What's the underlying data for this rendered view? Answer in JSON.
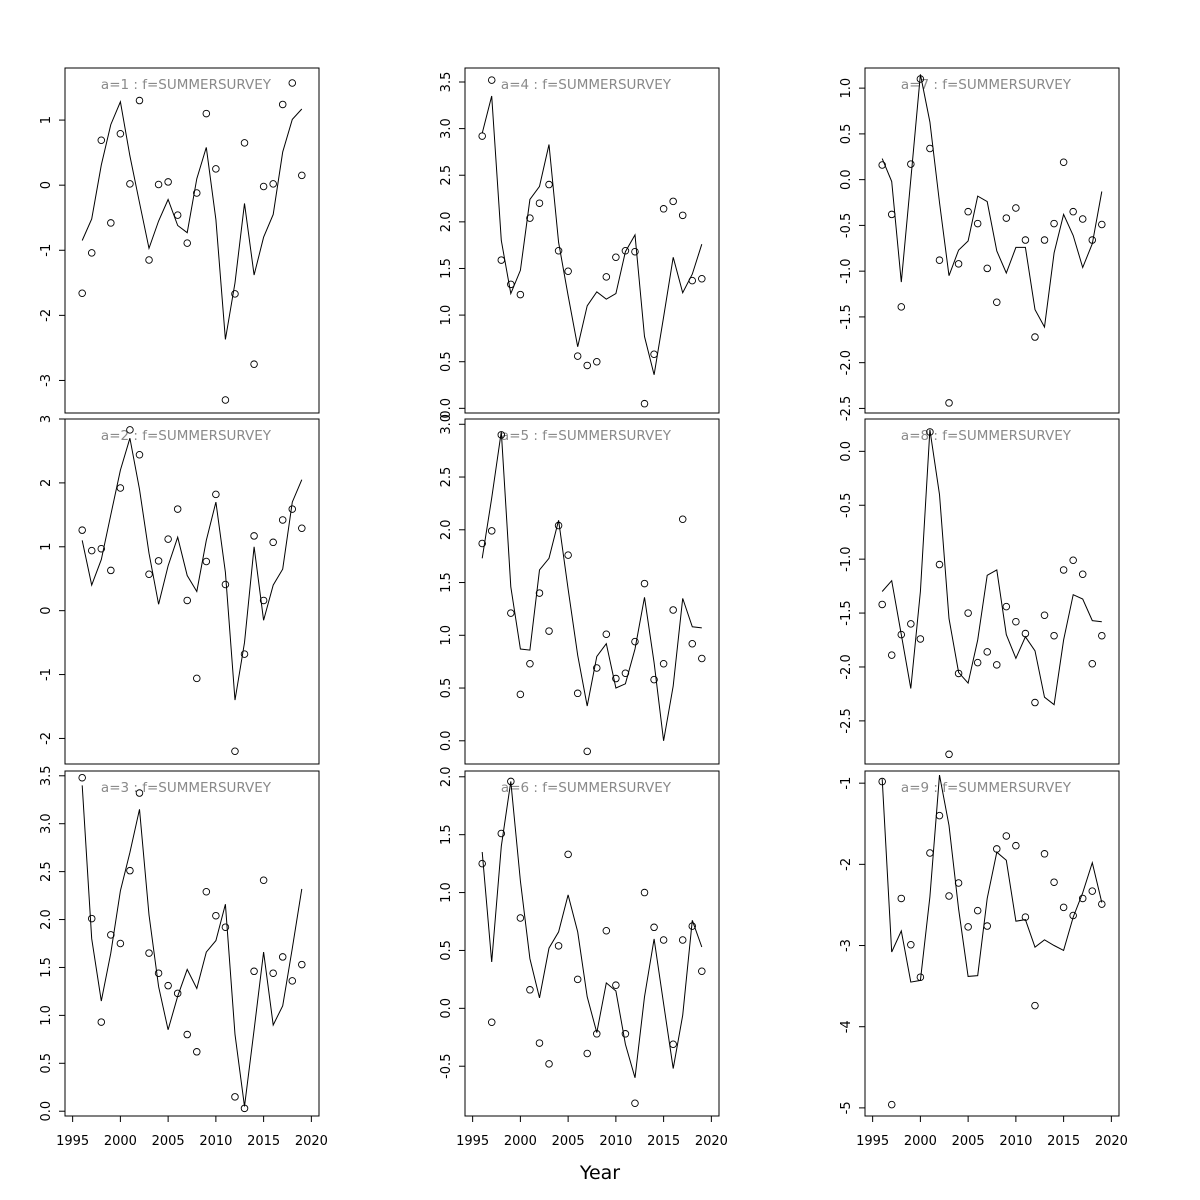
{
  "figure": {
    "xlabel": "Year"
  },
  "chart_data": [
    {
      "type": "line",
      "title": "a=1 : f=SUMMERSURVEY",
      "x": [
        1996,
        1997,
        1998,
        1999,
        2000,
        2001,
        2002,
        2003,
        2004,
        2005,
        2006,
        2007,
        2008,
        2009,
        2010,
        2011,
        2012,
        2013,
        2014,
        2015,
        2016,
        2017,
        2018,
        2019
      ],
      "points": [
        -1.66,
        -1.04,
        0.69,
        -0.58,
        0.79,
        0.02,
        1.3,
        -1.15,
        0.01,
        0.05,
        -0.46,
        -0.89,
        -0.12,
        1.1,
        0.25,
        -3.3,
        -1.67,
        0.65,
        -2.75,
        -0.02,
        0.02,
        1.24,
        1.57,
        0.15
      ],
      "line": [
        -0.85,
        -0.52,
        0.31,
        0.93,
        1.28,
        0.45,
        -0.27,
        -0.97,
        -0.55,
        -0.22,
        -0.62,
        -0.73,
        0.1,
        0.58,
        -0.53,
        -2.37,
        -1.5,
        -0.28,
        -1.38,
        -0.8,
        -0.45,
        0.51,
        1.01,
        1.17
      ],
      "ylim": [
        -3.5,
        1.8
      ],
      "yticks": [
        -3,
        -2,
        -1,
        0,
        1
      ]
    },
    {
      "type": "line",
      "title": "a=2 : f=SUMMERSURVEY",
      "x": [
        1996,
        1997,
        1998,
        1999,
        2000,
        2001,
        2002,
        2003,
        2004,
        2005,
        2006,
        2007,
        2008,
        2009,
        2010,
        2011,
        2012,
        2013,
        2014,
        2015,
        2016,
        2017,
        2018,
        2019
      ],
      "points": [
        1.26,
        0.94,
        0.97,
        0.63,
        1.92,
        2.83,
        2.44,
        0.57,
        0.78,
        1.12,
        1.59,
        0.16,
        -1.06,
        0.77,
        1.82,
        0.41,
        -2.2,
        -0.68,
        1.17,
        0.16,
        1.07,
        1.42,
        1.59,
        1.29
      ],
      "line": [
        1.1,
        0.4,
        0.8,
        1.5,
        2.2,
        2.7,
        1.9,
        0.9,
        0.1,
        0.7,
        1.15,
        0.55,
        0.3,
        1.1,
        1.7,
        0.6,
        -1.4,
        -0.5,
        1.0,
        -0.15,
        0.4,
        0.65,
        1.7,
        2.05
      ],
      "ylim": [
        -2.4,
        3.0
      ],
      "yticks": [
        -2,
        -1,
        0,
        1,
        2,
        3
      ]
    },
    {
      "type": "line",
      "title": "a=3 : f=SUMMERSURVEY",
      "x": [
        1996,
        1997,
        1998,
        1999,
        2000,
        2001,
        2002,
        2003,
        2004,
        2005,
        2006,
        2007,
        2008,
        2009,
        2010,
        2011,
        2012,
        2013,
        2014,
        2015,
        2016,
        2017,
        2018,
        2019
      ],
      "points": [
        3.48,
        2.01,
        0.93,
        1.84,
        1.75,
        2.51,
        3.32,
        1.65,
        1.44,
        1.31,
        1.23,
        0.8,
        0.62,
        2.29,
        2.04,
        1.92,
        0.15,
        0.03,
        1.46,
        2.41,
        1.44,
        1.61,
        1.36,
        1.53
      ],
      "line": [
        3.4,
        1.8,
        1.15,
        1.65,
        2.3,
        2.7,
        3.15,
        2.05,
        1.3,
        0.85,
        1.2,
        1.48,
        1.28,
        1.66,
        1.78,
        2.16,
        0.8,
        0.05,
        0.85,
        1.66,
        0.9,
        1.1,
        1.7,
        2.32
      ],
      "ylim": [
        -0.05,
        3.55
      ],
      "yticks": [
        0.0,
        0.5,
        1.0,
        1.5,
        2.0,
        2.5,
        3.0,
        3.5
      ]
    },
    {
      "type": "line",
      "title": "a=4 : f=SUMMERSURVEY",
      "x": [
        1996,
        1997,
        1998,
        1999,
        2000,
        2001,
        2002,
        2003,
        2004,
        2005,
        2006,
        2007,
        2008,
        2009,
        2010,
        2011,
        2012,
        2013,
        2014,
        2015,
        2016,
        2017,
        2018,
        2019
      ],
      "points": [
        2.92,
        3.52,
        1.59,
        1.33,
        1.22,
        2.04,
        2.2,
        2.4,
        1.69,
        1.47,
        0.56,
        0.46,
        0.5,
        1.41,
        1.62,
        1.69,
        1.68,
        0.05,
        0.58,
        2.14,
        2.22,
        2.07,
        1.37,
        1.39
      ],
      "line": [
        2.95,
        3.35,
        1.8,
        1.23,
        1.48,
        2.24,
        2.38,
        2.83,
        1.78,
        1.21,
        0.66,
        1.1,
        1.25,
        1.17,
        1.23,
        1.68,
        1.86,
        0.77,
        0.36,
        0.98,
        1.62,
        1.24,
        1.44,
        1.76
      ],
      "ylim": [
        -0.05,
        3.65
      ],
      "yticks": [
        0.0,
        0.5,
        1.0,
        1.5,
        2.0,
        2.5,
        3.0,
        3.5
      ]
    },
    {
      "type": "line",
      "title": "a=5 : f=SUMMERSURVEY",
      "x": [
        1996,
        1997,
        1998,
        1999,
        2000,
        2001,
        2002,
        2003,
        2004,
        2005,
        2006,
        2007,
        2008,
        2009,
        2010,
        2011,
        2012,
        2013,
        2014,
        2015,
        2016,
        2017,
        2018,
        2019
      ],
      "points": [
        1.87,
        1.99,
        2.9,
        1.21,
        0.44,
        0.73,
        1.4,
        1.04,
        2.04,
        1.76,
        0.45,
        -0.1,
        0.69,
        1.01,
        0.59,
        0.64,
        0.94,
        1.49,
        0.58,
        0.73,
        1.24,
        2.1,
        0.92,
        0.78
      ],
      "line": [
        1.73,
        2.3,
        2.93,
        1.46,
        0.87,
        0.86,
        1.62,
        1.73,
        2.09,
        1.44,
        0.81,
        0.33,
        0.8,
        0.92,
        0.5,
        0.54,
        0.87,
        1.36,
        0.74,
        0.0,
        0.52,
        1.35,
        1.08,
        1.07
      ],
      "ylim": [
        -0.22,
        3.05
      ],
      "yticks": [
        0.0,
        0.5,
        1.0,
        1.5,
        2.0,
        2.5,
        3.0
      ]
    },
    {
      "type": "line",
      "title": "a=6 : f=SUMMERSURVEY",
      "x": [
        1996,
        1997,
        1998,
        1999,
        2000,
        2001,
        2002,
        2003,
        2004,
        2005,
        2006,
        2007,
        2008,
        2009,
        2010,
        2011,
        2012,
        2013,
        2014,
        2015,
        2016,
        2017,
        2018,
        2019
      ],
      "points": [
        1.25,
        -0.12,
        1.51,
        1.96,
        0.78,
        0.16,
        -0.3,
        -0.48,
        0.54,
        1.33,
        0.25,
        -0.39,
        -0.22,
        0.67,
        0.2,
        -0.22,
        -0.82,
        1.0,
        0.7,
        0.59,
        -0.31,
        0.59,
        0.71,
        0.32
      ],
      "line": [
        1.35,
        0.4,
        1.4,
        1.96,
        1.1,
        0.43,
        0.09,
        0.52,
        0.66,
        0.98,
        0.66,
        0.1,
        -0.21,
        0.22,
        0.15,
        -0.31,
        -0.6,
        0.1,
        0.6,
        0.04,
        -0.52,
        -0.06,
        0.76,
        0.53
      ],
      "ylim": [
        -0.93,
        2.05
      ],
      "yticks": [
        -0.5,
        0.0,
        0.5,
        1.0,
        1.5,
        2.0
      ]
    },
    {
      "type": "line",
      "title": "a=7 : f=SUMMERSURVEY",
      "x": [
        1996,
        1997,
        1998,
        1999,
        2000,
        2001,
        2002,
        2003,
        2004,
        2005,
        2006,
        2007,
        2008,
        2009,
        2010,
        2011,
        2012,
        2013,
        2014,
        2015,
        2016,
        2017,
        2018,
        2019
      ],
      "points": [
        0.16,
        -0.38,
        -1.39,
        0.17,
        1.1,
        0.34,
        -0.88,
        -2.44,
        -0.92,
        -0.35,
        -0.48,
        -0.97,
        -1.34,
        -0.42,
        -0.31,
        -0.66,
        -1.72,
        -0.66,
        -0.48,
        0.19,
        -0.35,
        -0.43,
        -0.66,
        -0.49
      ],
      "line": [
        0.23,
        -0.02,
        -1.12,
        0.0,
        1.15,
        0.63,
        -0.25,
        -1.05,
        -0.77,
        -0.67,
        -0.18,
        -0.24,
        -0.78,
        -1.02,
        -0.74,
        -0.74,
        -1.42,
        -1.61,
        -0.8,
        -0.38,
        -0.61,
        -0.96,
        -0.7,
        -0.13
      ],
      "ylim": [
        -2.55,
        1.22
      ],
      "yticks": [
        -2.5,
        -2.0,
        -1.5,
        -1.0,
        -0.5,
        0.0,
        0.5,
        1.0
      ]
    },
    {
      "type": "line",
      "title": "a=8 : f=SUMMERSURVEY",
      "x": [
        1996,
        1997,
        1998,
        1999,
        2000,
        2001,
        2002,
        2003,
        2004,
        2005,
        2006,
        2007,
        2008,
        2009,
        2010,
        2011,
        2012,
        2013,
        2014,
        2015,
        2016,
        2017,
        2018,
        2019
      ],
      "points": [
        -1.42,
        -1.89,
        -1.7,
        -1.6,
        -1.74,
        0.18,
        -1.05,
        -2.81,
        -2.06,
        -1.5,
        -1.96,
        -1.86,
        -1.98,
        -1.44,
        -1.58,
        -1.69,
        -2.33,
        -1.52,
        -1.71,
        -1.1,
        -1.01,
        -1.14,
        -1.97,
        -1.71
      ],
      "line": [
        -1.3,
        -1.2,
        -1.7,
        -2.2,
        -1.3,
        0.2,
        -0.4,
        -1.55,
        -2.05,
        -2.15,
        -1.75,
        -1.15,
        -1.1,
        -1.7,
        -1.92,
        -1.72,
        -1.85,
        -2.28,
        -2.35,
        -1.75,
        -1.33,
        -1.37,
        -1.57,
        -1.58
      ],
      "ylim": [
        -2.9,
        0.3
      ],
      "yticks": [
        -2.5,
        -2.0,
        -1.5,
        -1.0,
        -0.5,
        0.0
      ]
    },
    {
      "type": "line",
      "title": "a=9 : f=SUMMERSURVEY",
      "x": [
        1996,
        1997,
        1998,
        1999,
        2000,
        2001,
        2002,
        2003,
        2004,
        2005,
        2006,
        2007,
        2008,
        2009,
        2010,
        2011,
        2012,
        2013,
        2014,
        2015,
        2016,
        2017,
        2018,
        2019
      ],
      "points": [
        -0.98,
        -4.96,
        -2.42,
        -2.99,
        -3.39,
        -1.86,
        -1.4,
        -2.39,
        -2.23,
        -2.77,
        -2.57,
        -2.76,
        -1.81,
        -1.65,
        -1.77,
        -2.65,
        -3.74,
        -1.87,
        -2.22,
        -2.53,
        -2.63,
        -2.42,
        -2.33,
        -2.49
      ],
      "line": [
        -0.95,
        -3.08,
        -2.82,
        -3.45,
        -3.43,
        -2.4,
        -0.9,
        -1.52,
        -2.55,
        -3.38,
        -3.37,
        -2.42,
        -1.85,
        -1.95,
        -2.7,
        -2.68,
        -3.02,
        -2.93,
        -3.0,
        -3.06,
        -2.65,
        -2.35,
        -1.98,
        -2.47
      ],
      "ylim": [
        -5.1,
        -0.85
      ],
      "yticks": [
        -5,
        -4,
        -3,
        -2,
        -1
      ]
    }
  ]
}
